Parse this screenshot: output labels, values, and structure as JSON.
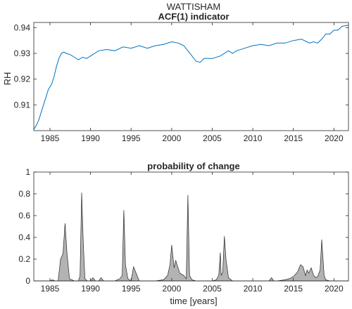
{
  "figure": {
    "suptitle": "WATTISHAM"
  },
  "chart_data": [
    {
      "type": "line",
      "title": "ACF(1) indicator",
      "xlabel": "",
      "ylabel": "RH",
      "xlim": [
        1983,
        2021.8
      ],
      "ylim": [
        0.9,
        0.942
      ],
      "xticks": [
        1985,
        1990,
        1995,
        2000,
        2005,
        2010,
        2015,
        2020
      ],
      "yticks": [
        0.91,
        0.92,
        0.93,
        0.94
      ],
      "ytick_labels": [
        "0.91",
        "0.92",
        "0.93",
        "0.94"
      ],
      "grid": false,
      "line_color": "#0072BD",
      "series": [
        {
          "x": [
            1983.0,
            1983.3,
            1983.6,
            1983.9,
            1984.2,
            1984.5,
            1984.8,
            1985.2,
            1985.5,
            1985.8,
            1986.1,
            1986.4,
            1986.7,
            1987.0,
            1987.5,
            1988.0,
            1988.5,
            1989.0,
            1989.5,
            1990.0,
            1991.0,
            1992.0,
            1993.0,
            1994.0,
            1995.0,
            1996.0,
            1997.0,
            1998.0,
            1999.0,
            2000.0,
            2000.8,
            2001.5,
            2002.0,
            2002.5,
            2003.0,
            2003.5,
            2004.0,
            2005.0,
            2006.0,
            2007.0,
            2007.5,
            2008.0,
            2009.0,
            2010.0,
            2011.0,
            2012.0,
            2013.0,
            2014.0,
            2015.0,
            2016.0,
            2017.0,
            2017.5,
            2018.0,
            2018.5,
            2019.0,
            2019.5,
            2020.0,
            2020.5,
            2021.0,
            2021.8
          ],
          "y": [
            0.9005,
            0.902,
            0.904,
            0.907,
            0.91,
            0.913,
            0.916,
            0.918,
            0.921,
            0.925,
            0.928,
            0.93,
            0.9305,
            0.93,
            0.9295,
            0.9285,
            0.9275,
            0.9285,
            0.928,
            0.929,
            0.931,
            0.9315,
            0.931,
            0.9325,
            0.932,
            0.933,
            0.932,
            0.933,
            0.9335,
            0.9345,
            0.934,
            0.933,
            0.931,
            0.929,
            0.927,
            0.9265,
            0.928,
            0.928,
            0.929,
            0.931,
            0.93,
            0.931,
            0.932,
            0.933,
            0.9335,
            0.933,
            0.934,
            0.934,
            0.935,
            0.9355,
            0.934,
            0.9345,
            0.934,
            0.9355,
            0.9375,
            0.9375,
            0.939,
            0.939,
            0.9405,
            0.941
          ]
        }
      ]
    },
    {
      "type": "area",
      "title": "probability of change",
      "xlabel": "time [years]",
      "ylabel": "",
      "xlim": [
        1983,
        2021.8
      ],
      "ylim": [
        0,
        1
      ],
      "xticks": [
        1985,
        1990,
        1995,
        2000,
        2005,
        2010,
        2015,
        2020
      ],
      "yticks": [
        0,
        0.2,
        0.4,
        0.6,
        0.8,
        1
      ],
      "ytick_labels": [
        "0",
        "0.2",
        "0.4",
        "0.6",
        "0.8",
        "1"
      ],
      "grid": false,
      "fill_color": "#b3b3b3",
      "edge_color": "#262626",
      "series": [
        {
          "x": [
            1983.0,
            1985.0,
            1985.3,
            1985.6,
            1986.0,
            1986.3,
            1986.6,
            1986.85,
            1987.1,
            1987.4,
            1988.0,
            1988.5,
            1988.7,
            1988.9,
            1989.1,
            1989.3,
            1989.6,
            1990.0,
            1990.3,
            1990.6,
            1991.0,
            1991.3,
            1991.6,
            1992.0,
            1993.0,
            1993.6,
            1993.9,
            1994.1,
            1994.3,
            1994.6,
            1995.0,
            1995.3,
            1996.0,
            1997.0,
            1998.0,
            1999.0,
            1999.5,
            1999.8,
            2000.0,
            2000.3,
            2000.5,
            2000.7,
            2001.0,
            2001.5,
            2001.8,
            2002.0,
            2002.2,
            2002.5,
            2003.0,
            2004.0,
            2005.0,
            2005.5,
            2005.8,
            2006.0,
            2006.1,
            2006.3,
            2006.5,
            2006.7,
            2007.0,
            2007.5,
            2008.0,
            2009.0,
            2010.0,
            2011.0,
            2012.0,
            2012.3,
            2012.6,
            2013.0,
            2014.0,
            2014.5,
            2015.0,
            2015.5,
            2015.9,
            2016.2,
            2016.5,
            2016.7,
            2016.9,
            2017.2,
            2017.5,
            2017.8,
            2018.0,
            2018.3,
            2018.5,
            2018.8,
            2019.0,
            2019.5,
            2020.0,
            2021.0,
            2021.8
          ],
          "y": [
            0,
            0.0,
            0.01,
            0.0,
            0.0,
            0.2,
            0.25,
            0.53,
            0.25,
            0.02,
            0.0,
            0.0,
            0.05,
            0.81,
            0.35,
            0.02,
            0.0,
            0.0,
            0.03,
            0.0,
            0.0,
            0.03,
            0.0,
            0.0,
            0.0,
            0.02,
            0.05,
            0.65,
            0.15,
            0.02,
            0.0,
            0.13,
            0.0,
            0.0,
            0.0,
            0.01,
            0.05,
            0.15,
            0.33,
            0.12,
            0.19,
            0.14,
            0.07,
            0.05,
            0.02,
            0.79,
            0.05,
            0.01,
            0.0,
            0.0,
            0.0,
            0.01,
            0.05,
            0.26,
            0.05,
            0.08,
            0.41,
            0.2,
            0.03,
            0.0,
            0.0,
            0.0,
            0.0,
            0.0,
            0.0,
            0.03,
            0.0,
            0.0,
            0.01,
            0.02,
            0.04,
            0.08,
            0.15,
            0.13,
            0.05,
            0.1,
            0.07,
            0.12,
            0.05,
            0.03,
            0.04,
            0.1,
            0.38,
            0.05,
            0.01,
            0.0,
            0.0,
            0.0,
            0.0
          ]
        }
      ]
    }
  ]
}
